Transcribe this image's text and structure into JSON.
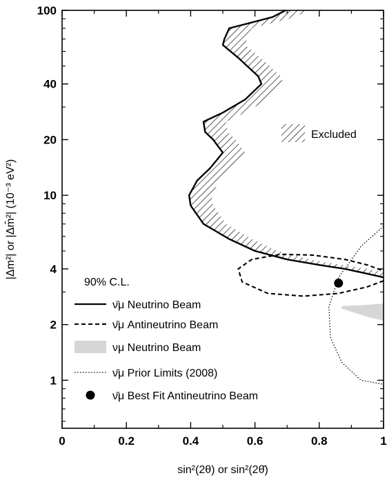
{
  "chart_data": {
    "type": "line",
    "title": "",
    "xlabel": "sin²(2θ) or sin²(2θ̄)",
    "ylabel": "|Δm²| or |Δm̄²| (10⁻³ eV²)",
    "x_range": [
      0,
      1
    ],
    "y_range": [
      0.55,
      100
    ],
    "y_scale": "log",
    "x_ticks": [
      {
        "value": 0,
        "label": "0"
      },
      {
        "value": 0.2,
        "label": "0.2"
      },
      {
        "value": 0.4,
        "label": "0.4"
      },
      {
        "value": 0.6,
        "label": "0.6"
      },
      {
        "value": 0.8,
        "label": "0.8"
      },
      {
        "value": 1,
        "label": "1"
      }
    ],
    "y_ticks": [
      {
        "value": 1,
        "label": "1"
      },
      {
        "value": 2,
        "label": "2"
      },
      {
        "value": 4,
        "label": "4"
      },
      {
        "value": 10,
        "label": "10"
      },
      {
        "value": 20,
        "label": "20"
      },
      {
        "value": 40,
        "label": "40"
      },
      {
        "value": 100,
        "label": "100"
      }
    ],
    "grid": false,
    "confidence_label": "90% C.L.",
    "excluded_label": "Excluded",
    "series": [
      {
        "name": "ν̄μ Neutrino Beam",
        "style": "solid",
        "points": [
          [
            0.695,
            100
          ],
          [
            0.655,
            92
          ],
          [
            0.52,
            80
          ],
          [
            0.505,
            70
          ],
          [
            0.5,
            65
          ],
          [
            0.55,
            55
          ],
          [
            0.61,
            44
          ],
          [
            0.62,
            40
          ],
          [
            0.57,
            33
          ],
          [
            0.5,
            28
          ],
          [
            0.44,
            25
          ],
          [
            0.445,
            22
          ],
          [
            0.47,
            20
          ],
          [
            0.5,
            17
          ],
          [
            0.46,
            14
          ],
          [
            0.42,
            12
          ],
          [
            0.395,
            10
          ],
          [
            0.4,
            8.8
          ],
          [
            0.44,
            7.0
          ],
          [
            0.52,
            5.8
          ],
          [
            0.6,
            5.0
          ],
          [
            0.7,
            4.5
          ],
          [
            0.8,
            4.2
          ],
          [
            0.88,
            4.0
          ],
          [
            0.94,
            3.8
          ],
          [
            1.0,
            3.6
          ]
        ]
      },
      {
        "name": "ν̄μ Antineutrino Beam",
        "style": "dashed",
        "points": [
          [
            1.0,
            3.45
          ],
          [
            0.95,
            3.2
          ],
          [
            0.86,
            2.95
          ],
          [
            0.75,
            2.85
          ],
          [
            0.64,
            2.95
          ],
          [
            0.56,
            3.4
          ],
          [
            0.548,
            4.0
          ],
          [
            0.59,
            4.5
          ],
          [
            0.68,
            4.8
          ],
          [
            0.78,
            4.75
          ],
          [
            0.88,
            4.5
          ],
          [
            0.95,
            4.2
          ],
          [
            1.0,
            3.9
          ]
        ]
      },
      {
        "name": "νμ Neutrino Beam",
        "style": "shaded",
        "points": [
          [
            0.87,
            2.52
          ],
          [
            0.94,
            2.55
          ],
          [
            1.0,
            2.6
          ],
          [
            1.0,
            2.1
          ],
          [
            0.95,
            2.2
          ],
          [
            0.9,
            2.35
          ],
          [
            0.87,
            2.44
          ]
        ]
      },
      {
        "name": "ν̄μ Prior Limits (2008)",
        "style": "dotted",
        "points": [
          [
            1.0,
            6.8
          ],
          [
            0.93,
            5.3
          ],
          [
            0.86,
            3.6
          ],
          [
            0.83,
            2.5
          ],
          [
            0.835,
            1.7
          ],
          [
            0.87,
            1.25
          ],
          [
            0.93,
            1.0
          ],
          [
            1.0,
            0.95
          ]
        ]
      },
      {
        "name": "ν̄μ Best Fit Antineutrino Beam",
        "style": "point",
        "points": [
          [
            0.86,
            3.35
          ]
        ]
      }
    ],
    "excluded_region_edge": [
      [
        0.695,
        100
      ],
      [
        0.75,
        100
      ]
    ],
    "legend_placement": "lower-left"
  },
  "colors": {
    "line": "#000000",
    "shaded": "#d6d6d6",
    "background": "#ffffff"
  }
}
